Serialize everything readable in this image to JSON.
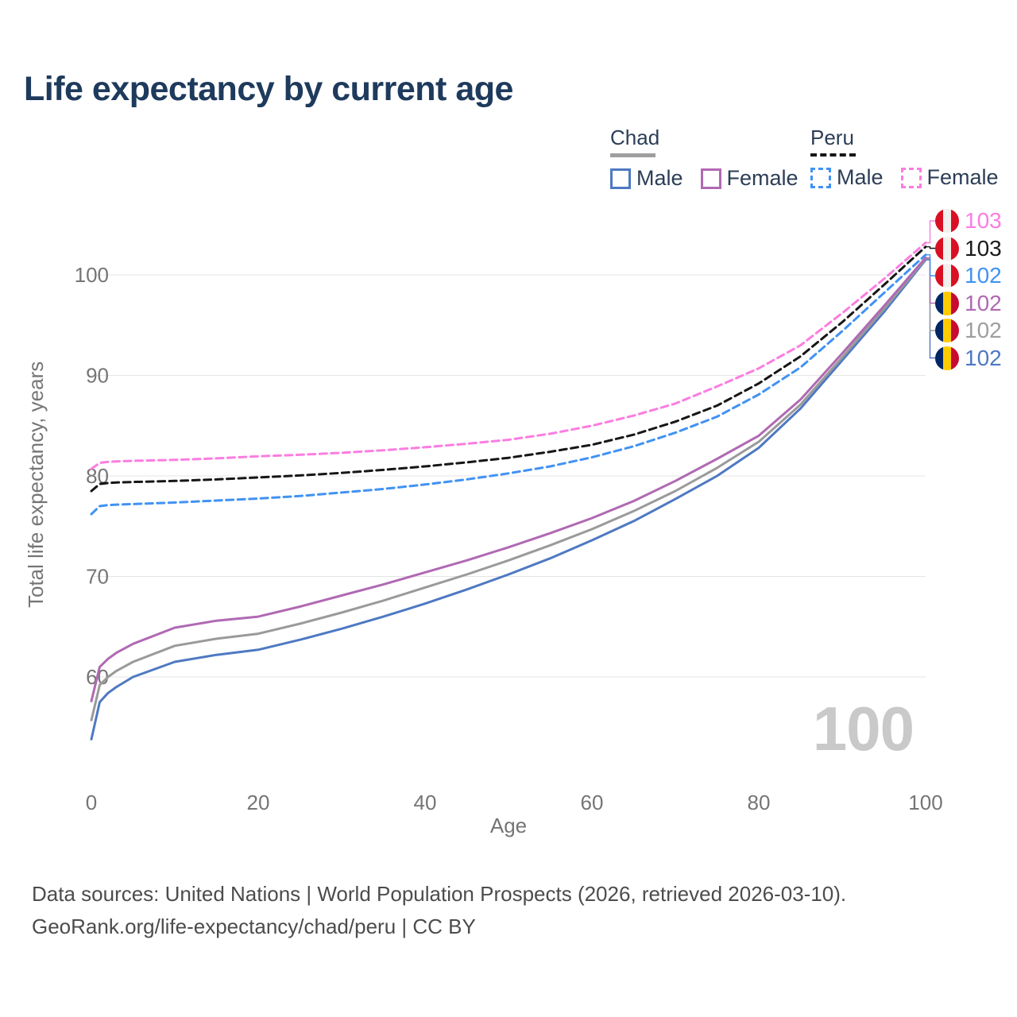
{
  "title": "Life expectancy by current age",
  "legend": {
    "groups": [
      {
        "name": "Chad",
        "line_style": "solid",
        "underline_color": "#9e9e9e",
        "items": [
          {
            "label": "Male",
            "color": "#4e79c2"
          },
          {
            "label": "Female",
            "color": "#b069b3"
          }
        ]
      },
      {
        "name": "Peru",
        "line_style": "dashed",
        "underline_color": "#161616",
        "items": [
          {
            "label": "Male",
            "color": "#4192f3"
          },
          {
            "label": "Female",
            "color": "#fb7de1"
          }
        ]
      }
    ]
  },
  "chart_data": {
    "type": "line",
    "title": "Life expectancy by current age",
    "xlabel": "Age",
    "ylabel": "Total life expectancy, years",
    "xlim": [
      0,
      100
    ],
    "ylim": [
      53,
      104
    ],
    "x_ticks": [
      0,
      20,
      40,
      60,
      80,
      100
    ],
    "y_ticks": [
      60,
      70,
      80,
      90,
      100
    ],
    "grid": "horizontal",
    "x": [
      0,
      1,
      2,
      3,
      5,
      10,
      15,
      20,
      25,
      30,
      35,
      40,
      45,
      50,
      55,
      60,
      65,
      70,
      75,
      80,
      85,
      90,
      95,
      100
    ],
    "series": [
      {
        "name": "Chad Male",
        "country": "Chad",
        "sex": "Male",
        "color": "#4e79c2",
        "dash": false,
        "label_index": 5,
        "end_label": 102,
        "values": [
          53.8,
          57.5,
          58.4,
          59.0,
          60.0,
          61.5,
          62.2,
          62.7,
          63.7,
          64.8,
          66.0,
          67.3,
          68.7,
          70.2,
          71.8,
          73.6,
          75.5,
          77.7,
          80.0,
          82.8,
          86.7,
          91.5,
          96.3,
          101.5
        ]
      },
      {
        "name": "Chad Total",
        "country": "Chad",
        "sex": "Total",
        "color": "#9a9a9a",
        "dash": false,
        "label_index": 4,
        "end_label": 102,
        "values": [
          55.7,
          59.2,
          60.0,
          60.6,
          61.5,
          63.1,
          63.8,
          64.3,
          65.3,
          66.4,
          67.6,
          68.9,
          70.2,
          71.6,
          73.1,
          74.7,
          76.5,
          78.5,
          80.8,
          83.4,
          87.1,
          91.8,
          96.6,
          101.6
        ]
      },
      {
        "name": "Chad Female",
        "country": "Chad",
        "sex": "Female",
        "color": "#b069b3",
        "dash": false,
        "label_index": 3,
        "end_label": 102,
        "values": [
          57.6,
          61.0,
          61.8,
          62.4,
          63.3,
          64.9,
          65.6,
          66.0,
          67.0,
          68.1,
          69.2,
          70.4,
          71.6,
          72.9,
          74.3,
          75.8,
          77.5,
          79.5,
          81.7,
          84.0,
          87.6,
          92.2,
          96.9,
          101.7
        ]
      },
      {
        "name": "Peru Male",
        "country": "Peru",
        "sex": "Male",
        "color": "#4192f3",
        "dash": true,
        "label_index": 2,
        "end_label": 102,
        "values": [
          76.2,
          77.0,
          77.1,
          77.15,
          77.2,
          77.35,
          77.55,
          77.75,
          78.0,
          78.35,
          78.7,
          79.15,
          79.65,
          80.25,
          80.95,
          81.85,
          82.95,
          84.3,
          85.9,
          88.1,
          90.8,
          94.4,
          98.2,
          102.0
        ]
      },
      {
        "name": "Peru Total",
        "country": "Peru",
        "sex": "Total",
        "color": "#161616",
        "dash": true,
        "label_index": 1,
        "end_label": 103,
        "values": [
          78.5,
          79.2,
          79.3,
          79.35,
          79.4,
          79.5,
          79.65,
          79.85,
          80.05,
          80.3,
          80.6,
          80.95,
          81.35,
          81.8,
          82.4,
          83.1,
          84.1,
          85.4,
          87.0,
          89.2,
          91.9,
          95.3,
          99.0,
          102.8
        ]
      },
      {
        "name": "Peru Female",
        "country": "Peru",
        "sex": "Female",
        "color": "#fb7de1",
        "dash": true,
        "label_index": 0,
        "end_label": 103,
        "values": [
          80.7,
          81.3,
          81.4,
          81.45,
          81.5,
          81.6,
          81.75,
          81.95,
          82.1,
          82.3,
          82.55,
          82.85,
          83.2,
          83.6,
          84.2,
          85.0,
          86.0,
          87.2,
          88.9,
          90.7,
          93.0,
          96.2,
          99.6,
          103.2
        ]
      }
    ]
  },
  "right_labels": [
    {
      "flag": "peru",
      "flag_icon": "peru-flag-icon",
      "value": "103",
      "color": "#fb7de1"
    },
    {
      "flag": "peru",
      "flag_icon": "peru-flag-icon",
      "value": "103",
      "color": "#1a1a1a"
    },
    {
      "flag": "peru",
      "flag_icon": "peru-flag-icon",
      "value": "102",
      "color": "#4192f3"
    },
    {
      "flag": "chad",
      "flag_icon": "chad-flag-icon",
      "value": "102",
      "color": "#b069b3"
    },
    {
      "flag": "chad",
      "flag_icon": "chad-flag-icon",
      "value": "102",
      "color": "#9e9e9e"
    },
    {
      "flag": "chad",
      "flag_icon": "chad-flag-icon",
      "value": "102",
      "color": "#4e79c2"
    }
  ],
  "current_age_display": "100",
  "axis": {
    "x_title": "Age",
    "y_title": "Total life expectancy, years",
    "tick_color": "#757575",
    "grid_color": "#e5e5e5"
  },
  "footer": {
    "line1": "Data sources: United Nations | World Population Prospects (2026, retrieved 2026-03-10).",
    "line2": "GeoRank.org/life-expectancy/chad/peru | CC BY"
  }
}
